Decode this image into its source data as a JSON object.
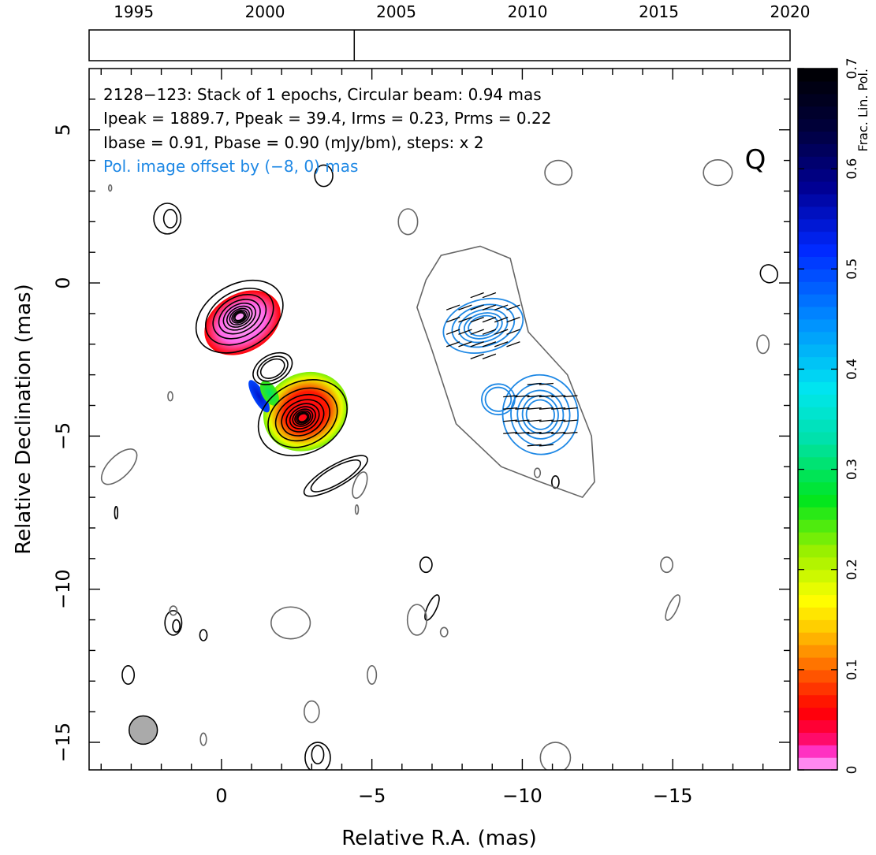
{
  "chart_data": {
    "type": "contour map",
    "timeline": {
      "year_labels": [
        "1995",
        "2000",
        "2005",
        "2010",
        "2015",
        "2020"
      ],
      "year_range": [
        1993.3,
        2020.0
      ],
      "epoch_years": [
        2003.4
      ]
    },
    "header": {
      "line1": "2128−123: Stack of 1 epochs, Circular beam: 0.94 mas",
      "line2": "Ipeak = 1889.7, Ppeak = 39.4, Irms = 0.23, Prms = 0.22",
      "line3": "Ibase = 0.91, Pbase = 0.90 (mJy/bm), steps: x 2",
      "line4": "Pol. image offset by (−8, 0) mas",
      "line4_color": "#1e88e5"
    },
    "quality_letter": "Q",
    "xlabel": "Relative R.A. (mas)",
    "ylabel": "Relative Declination (mas)",
    "xlim": [
      4.4,
      -18.9
    ],
    "ylim": [
      -15.9,
      7.0
    ],
    "x_ticks": [
      0,
      -5,
      -10,
      -15
    ],
    "x_tick_labels": [
      "0",
      "−5",
      "−10",
      "−15"
    ],
    "y_ticks": [
      5,
      0,
      -5,
      -10,
      -15
    ],
    "y_tick_labels": [
      "5",
      "0",
      "−5",
      "−10",
      "−15"
    ],
    "colorbar": {
      "label": "Frac. Lin. Pol.",
      "range": [
        0,
        0.7
      ],
      "tick_values": [
        0,
        0.1,
        0.2,
        0.3,
        0.4,
        0.5,
        0.6,
        0.7
      ],
      "tick_labels": [
        "0",
        "0.1",
        "0.2",
        "0.3",
        "0.4",
        "0.5",
        "0.6",
        "0.7"
      ]
    },
    "beam": {
      "ra": 2.6,
      "dec": -14.6,
      "diameter_mas": 0.94
    },
    "colors": {
      "total_intensity": "#000000",
      "negative_contours": "#666666",
      "pol_contours": "#1e88e5",
      "evpa_ticks": "#000000"
    },
    "stokes_i_components": [
      {
        "ra": -0.6,
        "dec": -1.1,
        "a": 1.55,
        "b": 1.05,
        "pa": 30,
        "levels": 10
      },
      {
        "ra": -2.7,
        "dec": -4.4,
        "a": 1.55,
        "b": 1.15,
        "pa": 28,
        "levels": 10
      },
      {
        "ra": -1.7,
        "dec": -2.8,
        "a": 0.7,
        "b": 0.45,
        "pa": 30,
        "levels": 3
      },
      {
        "ra": -3.8,
        "dec": -6.3,
        "a": 1.2,
        "b": 0.35,
        "pa": 30,
        "levels": 2
      }
    ],
    "fractional_pol_regions": [
      {
        "ra": -0.7,
        "dec": -1.3,
        "rx": 1.35,
        "ry": 0.95,
        "stops": [
          [
            0,
            0.0
          ],
          [
            0.6,
            0.01
          ],
          [
            1,
            0.06
          ]
        ]
      },
      {
        "ra": -2.8,
        "dec": -4.2,
        "rx": 1.45,
        "ry": 1.25,
        "stops": [
          [
            0,
            0.05
          ],
          [
            0.5,
            0.07
          ],
          [
            0.85,
            0.18
          ],
          [
            1,
            0.23
          ]
        ]
      },
      {
        "ra": -1.25,
        "dec": -3.7,
        "rx": 0.2,
        "ry": 0.6,
        "stops": [
          [
            0,
            0.55
          ],
          [
            1,
            0.5
          ]
        ]
      },
      {
        "ra": -1.6,
        "dec": -3.6,
        "rx": 0.25,
        "ry": 0.45,
        "stops": [
          [
            0,
            0.3
          ],
          [
            1,
            0.25
          ]
        ]
      }
    ],
    "pol_intensity_components": [
      {
        "ra": -8.7,
        "dec": -1.4,
        "a": 1.35,
        "b": 0.85,
        "pa": 15,
        "levels": 5
      },
      {
        "ra": -10.6,
        "dec": -4.3,
        "a": 1.25,
        "b": 1.3,
        "pa": 10,
        "levels": 5
      },
      {
        "ra": -9.2,
        "dec": -3.8,
        "a": 0.55,
        "b": 0.5,
        "pa": 0,
        "levels": 2
      }
    ],
    "offset_i_outline": [
      [
        -6.8,
        0.1
      ],
      [
        -7.3,
        0.9
      ],
      [
        -8.6,
        1.2
      ],
      [
        -9.6,
        0.8
      ],
      [
        -10.2,
        -1.6
      ],
      [
        -11.5,
        -3.0
      ],
      [
        -12.3,
        -5.0
      ],
      [
        -12.4,
        -6.5
      ],
      [
        -12.0,
        -7.0
      ],
      [
        -10.6,
        -6.5
      ],
      [
        -9.3,
        -6.0
      ],
      [
        -7.8,
        -4.6
      ],
      [
        -7.0,
        -2.2
      ],
      [
        -6.5,
        -0.8
      ]
    ],
    "evpa_vectors": [
      {
        "ra": -8.7,
        "dec": -1.4,
        "nx": 10,
        "ny": 6,
        "dx": 0.4,
        "dy": 0.4,
        "angle": -20
      },
      {
        "ra": -10.6,
        "dec": -4.3,
        "nx": 8,
        "ny": 8,
        "dx": 0.4,
        "dy": 0.4,
        "angle": -5
      }
    ],
    "noise_contours": [
      {
        "ra": 1.7,
        "dec": 2.1,
        "rx": 0.22,
        "ry": 0.3,
        "pa": 0,
        "c": 0
      },
      {
        "ra": 1.8,
        "dec": 2.1,
        "rx": 0.45,
        "ry": 0.5,
        "pa": 0,
        "c": 0
      },
      {
        "ra": -3.4,
        "dec": 3.5,
        "rx": 0.3,
        "ry": 0.35,
        "pa": 0,
        "c": 0
      },
      {
        "ra": -6.2,
        "dec": 2.0,
        "rx": 0.32,
        "ry": 0.42,
        "pa": 0,
        "c": 1
      },
      {
        "ra": -11.2,
        "dec": 3.6,
        "rx": 0.45,
        "ry": 0.4,
        "pa": 0,
        "c": 1
      },
      {
        "ra": -16.5,
        "dec": 3.6,
        "rx": 0.48,
        "ry": 0.42,
        "pa": 0,
        "c": 1
      },
      {
        "ra": -18.2,
        "dec": 0.3,
        "rx": 0.28,
        "ry": 0.3,
        "pa": -30,
        "c": 0
      },
      {
        "ra": -18.0,
        "dec": -2.0,
        "rx": 0.2,
        "ry": 0.3,
        "pa": 0,
        "c": 1
      },
      {
        "ra": 3.4,
        "dec": -6.0,
        "rx": 0.75,
        "ry": 0.35,
        "pa": -45,
        "c": 1
      },
      {
        "ra": 1.7,
        "dec": -3.7,
        "rx": 0.08,
        "ry": 0.15,
        "pa": 0,
        "c": 1
      },
      {
        "ra": -4.6,
        "dec": -6.6,
        "rx": 0.2,
        "ry": 0.45,
        "pa": 20,
        "c": 1
      },
      {
        "ra": -11.1,
        "dec": -6.5,
        "rx": 0.12,
        "ry": 0.2,
        "pa": 0,
        "c": 0
      },
      {
        "ra": -10.5,
        "dec": -6.2,
        "rx": 0.1,
        "ry": 0.15,
        "pa": 0,
        "c": 1
      },
      {
        "ra": -6.8,
        "dec": -9.2,
        "rx": 0.2,
        "ry": 0.25,
        "pa": 0,
        "c": 0
      },
      {
        "ra": -7.0,
        "dec": -10.6,
        "rx": 0.15,
        "ry": 0.45,
        "pa": 25,
        "c": 0
      },
      {
        "ra": -14.8,
        "dec": -9.2,
        "rx": 0.2,
        "ry": 0.25,
        "pa": 0,
        "c": 1
      },
      {
        "ra": -15.0,
        "dec": -10.6,
        "rx": 0.15,
        "ry": 0.45,
        "pa": 25,
        "c": 1
      },
      {
        "ra": 1.6,
        "dec": -11.1,
        "rx": 0.28,
        "ry": 0.4,
        "pa": 0,
        "c": 0
      },
      {
        "ra": 1.5,
        "dec": -11.2,
        "rx": 0.12,
        "ry": 0.2,
        "pa": 0,
        "c": 0
      },
      {
        "ra": 1.6,
        "dec": -10.7,
        "rx": 0.12,
        "ry": 0.15,
        "pa": 0,
        "c": 1
      },
      {
        "ra": 0.6,
        "dec": -11.5,
        "rx": 0.12,
        "ry": 0.18,
        "pa": 0,
        "c": 0
      },
      {
        "ra": -2.3,
        "dec": -11.1,
        "rx": 0.65,
        "ry": 0.52,
        "pa": 0,
        "c": 1
      },
      {
        "ra": -6.5,
        "dec": -11.0,
        "rx": 0.32,
        "ry": 0.5,
        "pa": 0,
        "c": 1
      },
      {
        "ra": -7.4,
        "dec": -11.4,
        "rx": 0.12,
        "ry": 0.15,
        "pa": 0,
        "c": 1
      },
      {
        "ra": 3.1,
        "dec": -12.8,
        "rx": 0.2,
        "ry": 0.3,
        "pa": 0,
        "c": 0
      },
      {
        "ra": -5.0,
        "dec": -12.8,
        "rx": 0.15,
        "ry": 0.3,
        "pa": 0,
        "c": 1
      },
      {
        "ra": -3.0,
        "dec": -14.0,
        "rx": 0.25,
        "ry": 0.35,
        "pa": 0,
        "c": 1
      },
      {
        "ra": 0.6,
        "dec": -14.9,
        "rx": 0.1,
        "ry": 0.2,
        "pa": 0,
        "c": 1
      },
      {
        "ra": -3.2,
        "dec": -15.4,
        "rx": 0.2,
        "ry": 0.3,
        "pa": 0,
        "c": 0
      },
      {
        "ra": -3.2,
        "dec": -15.5,
        "rx": 0.42,
        "ry": 0.5,
        "pa": 0,
        "c": 0
      },
      {
        "ra": -11.1,
        "dec": -15.5,
        "rx": 0.5,
        "ry": 0.5,
        "pa": 0,
        "c": 1
      },
      {
        "ra": 3.5,
        "dec": -7.5,
        "rx": 0.05,
        "ry": 0.2,
        "pa": 0,
        "c": 0
      },
      {
        "ra": 3.7,
        "dec": 3.1,
        "rx": 0.05,
        "ry": 0.1,
        "pa": 0,
        "c": 1
      },
      {
        "ra": -4.5,
        "dec": -7.4,
        "rx": 0.05,
        "ry": 0.15,
        "pa": 0,
        "c": 1
      }
    ]
  }
}
